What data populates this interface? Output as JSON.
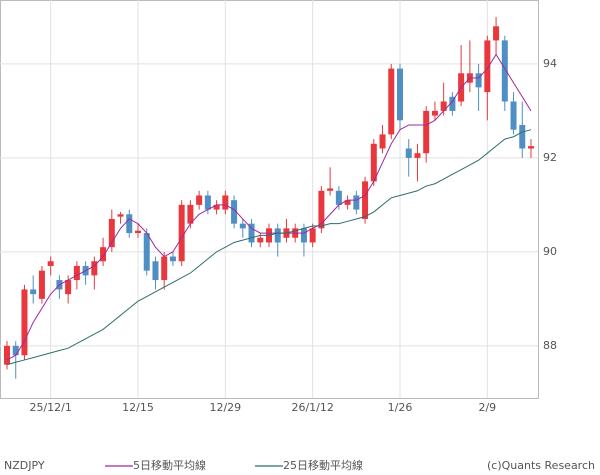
{
  "chart_data": {
    "type": "candlestick",
    "ticker": "NZDJPY",
    "footer": "(c)Quants Research",
    "categories": [
      null,
      null,
      null,
      null,
      null,
      "25/12/1",
      null,
      null,
      null,
      null,
      null,
      null,
      null,
      null,
      null,
      "12/15",
      null,
      null,
      null,
      null,
      null,
      null,
      null,
      null,
      null,
      "12/29",
      null,
      null,
      null,
      null,
      null,
      null,
      null,
      null,
      null,
      "26/1/12",
      null,
      null,
      null,
      null,
      null,
      null,
      null,
      null,
      null,
      "1/26",
      null,
      null,
      null,
      null,
      null,
      null,
      null,
      null,
      null,
      "2/9",
      null,
      null,
      null,
      null,
      null
    ],
    "open": [
      87.6,
      88.0,
      87.8,
      89.2,
      89.0,
      89.7,
      89.4,
      89.1,
      89.4,
      89.7,
      89.5,
      89.8,
      90.1,
      90.75,
      90.8,
      90.4,
      90.4,
      89.8,
      89.4,
      89.9,
      89.8,
      90.6,
      91.0,
      91.2,
      90.9,
      90.9,
      91.1,
      90.6,
      90.6,
      90.2,
      90.2,
      90.5,
      90.3,
      90.3,
      90.5,
      90.2,
      90.5,
      91.3,
      91.3,
      91.0,
      91.2,
      90.7,
      91.5,
      92.2,
      92.5,
      93.9,
      92.2,
      92.0,
      92.1,
      92.9,
      93.0,
      93.3,
      93.2,
      93.6,
      93.8,
      93.4,
      94.5,
      94.5,
      93.2,
      92.7,
      92.2
    ],
    "high": [
      88.1,
      88.1,
      89.3,
      89.5,
      89.7,
      89.9,
      89.5,
      89.5,
      89.8,
      89.8,
      89.9,
      90.3,
      90.9,
      90.85,
      90.9,
      90.6,
      90.5,
      89.9,
      90.0,
      90.0,
      91.1,
      91.1,
      91.3,
      91.3,
      91.1,
      91.3,
      91.2,
      90.7,
      90.7,
      90.4,
      90.6,
      90.6,
      90.7,
      90.6,
      90.6,
      90.6,
      91.4,
      91.8,
      91.4,
      91.2,
      91.3,
      91.6,
      92.4,
      92.7,
      94.0,
      94.0,
      92.4,
      92.3,
      93.1,
      93.2,
      93.6,
      93.4,
      94.4,
      94.5,
      94.0,
      94.6,
      95.0,
      94.6,
      93.4,
      93.2,
      92.4
    ],
    "low": [
      87.5,
      87.3,
      87.7,
      88.9,
      88.9,
      89.5,
      89.0,
      88.9,
      89.2,
      89.3,
      89.2,
      89.7,
      90.0,
      90.6,
      90.3,
      90.3,
      89.5,
      89.2,
      89.2,
      89.7,
      89.7,
      90.5,
      90.9,
      90.8,
      90.8,
      90.8,
      90.5,
      90.3,
      90.1,
      90.1,
      90.1,
      89.9,
      90.2,
      90.2,
      89.9,
      90.1,
      90.4,
      91.2,
      90.9,
      90.9,
      90.8,
      90.6,
      91.4,
      92.1,
      92.4,
      92.6,
      91.6,
      91.5,
      91.9,
      92.8,
      92.9,
      92.9,
      93.1,
      93.4,
      93.0,
      92.8,
      94.2,
      93.0,
      92.5,
      92.0,
      92.0
    ],
    "close": [
      88.0,
      87.8,
      89.2,
      89.1,
      89.6,
      89.8,
      89.2,
      89.4,
      89.7,
      89.5,
      89.8,
      90.1,
      90.7,
      90.8,
      90.4,
      90.45,
      89.6,
      89.4,
      89.9,
      89.8,
      91.0,
      91.0,
      91.2,
      90.9,
      91.0,
      91.2,
      90.6,
      90.5,
      90.2,
      90.3,
      90.5,
      90.2,
      90.5,
      90.5,
      90.2,
      90.5,
      91.3,
      91.35,
      91.0,
      91.1,
      90.9,
      91.5,
      92.3,
      92.5,
      93.9,
      92.8,
      92.0,
      92.1,
      93.0,
      93.0,
      93.2,
      93.0,
      93.8,
      93.8,
      93.5,
      94.5,
      94.8,
      93.2,
      92.6,
      92.2,
      92.25
    ],
    "up_color": "#e8383d",
    "down_color": "#4f8fc4",
    "series": [
      {
        "name": "5日移動平均線",
        "color": "#a0289c",
        "values": [
          87.7,
          87.8,
          88.1,
          88.5,
          88.8,
          89.1,
          89.3,
          89.4,
          89.5,
          89.6,
          89.7,
          89.9,
          90.2,
          90.5,
          90.7,
          90.6,
          90.4,
          90.1,
          89.9,
          90.0,
          90.3,
          90.6,
          90.8,
          90.9,
          91.0,
          91.0,
          90.9,
          90.7,
          90.5,
          90.4,
          90.4,
          90.4,
          90.4,
          90.4,
          90.4,
          90.5,
          90.6,
          90.8,
          91.0,
          91.1,
          91.1,
          91.2,
          91.5,
          91.9,
          92.3,
          92.6,
          92.7,
          92.7,
          92.7,
          92.8,
          93.0,
          93.2,
          93.5,
          93.7,
          93.7,
          93.9,
          94.2,
          93.9,
          93.6,
          93.3,
          93.0
        ]
      },
      {
        "name": "25日移動平均線",
        "color": "#2e6e6a",
        "values": [
          87.6,
          87.65,
          87.7,
          87.75,
          87.8,
          87.85,
          87.9,
          87.95,
          88.05,
          88.15,
          88.25,
          88.35,
          88.5,
          88.65,
          88.8,
          88.95,
          89.05,
          89.15,
          89.25,
          89.35,
          89.45,
          89.55,
          89.7,
          89.85,
          90.0,
          90.1,
          90.2,
          90.25,
          90.3,
          90.35,
          90.35,
          90.4,
          90.4,
          90.45,
          90.5,
          90.55,
          90.55,
          90.6,
          90.6,
          90.65,
          90.7,
          90.75,
          90.85,
          91.0,
          91.15,
          91.2,
          91.25,
          91.3,
          91.4,
          91.45,
          91.55,
          91.65,
          91.75,
          91.85,
          91.95,
          92.1,
          92.25,
          92.4,
          92.45,
          92.55,
          92.6
        ]
      }
    ],
    "ylim": [
      86.89,
      95.36
    ],
    "yticks": [
      88,
      90,
      92,
      94
    ],
    "grid": true
  }
}
